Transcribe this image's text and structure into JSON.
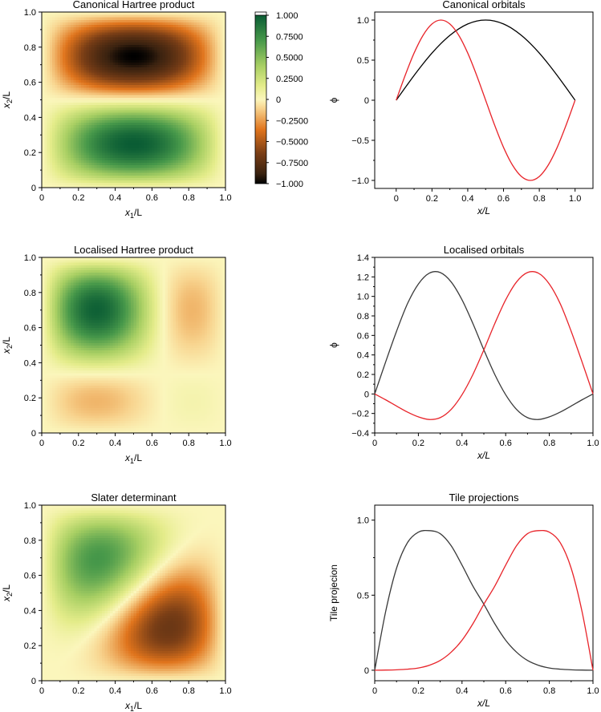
{
  "chart_data": [
    {
      "type": "heatmap",
      "panel": "canonical-hartree",
      "function": "sin(pi*x1)*sin(2*pi*x2)",
      "title": "Canonical Hartree product",
      "xlabel": {
        "base": "x",
        "sub": "1",
        "rest": "/L"
      },
      "ylabel": {
        "base": "x",
        "sub": "2",
        "rest": "/L"
      },
      "xlim": [
        0,
        1
      ],
      "ylim": [
        0,
        1
      ],
      "xticks": [
        "0",
        "0.2",
        "0.4",
        "0.6",
        "0.8",
        "1.0"
      ],
      "yticks": [
        "0",
        "0.2",
        "0.4",
        "0.6",
        "0.8",
        "1.0"
      ],
      "colorbar": {
        "range": [
          -1,
          1
        ],
        "ticks": [
          1,
          0.75,
          0.5,
          0.25,
          0,
          -0.25,
          -0.5,
          -0.75,
          -1
        ],
        "tick_labels": [
          "1.000",
          "0.7500",
          "0.5000",
          "0.2500",
          "0",
          "−0.2500",
          "−0.5000",
          "−0.7500",
          "−1.000"
        ]
      }
    },
    {
      "type": "line",
      "panel": "canonical-orbitals",
      "title": "Canonical orbitals",
      "xlabel": "x/L",
      "ylabel": "ϕ",
      "xlim": [
        -0.12,
        1.1
      ],
      "ylim": [
        -1.1,
        1.1
      ],
      "xticks": [
        0,
        0.2,
        0.4,
        0.6,
        0.8,
        1.0
      ],
      "xtick_labels": [
        "0",
        "0.2",
        "0.4",
        "0.6",
        "0.8",
        "1.0"
      ],
      "yticks": [
        -1.0,
        -0.5,
        0,
        0.5,
        1.0
      ],
      "ytick_labels": [
        "−1.0",
        "−0.5",
        "0",
        "0.5",
        "1.0"
      ],
      "x": [
        0,
        0.05,
        0.1,
        0.15,
        0.2,
        0.25,
        0.3,
        0.35,
        0.4,
        0.45,
        0.5,
        0.55,
        0.6,
        0.65,
        0.7,
        0.75,
        0.8,
        0.85,
        0.9,
        0.95,
        1.0
      ],
      "series": [
        {
          "color": "#000000",
          "values": [
            0,
            0.156,
            0.309,
            0.454,
            0.588,
            0.707,
            0.809,
            0.891,
            0.951,
            0.988,
            1.0,
            0.988,
            0.951,
            0.891,
            0.809,
            0.707,
            0.588,
            0.454,
            0.309,
            0.156,
            0
          ]
        },
        {
          "color": "#e8242a",
          "values": [
            0,
            0.309,
            0.588,
            0.809,
            0.951,
            1.0,
            0.951,
            0.809,
            0.588,
            0.309,
            0,
            -0.309,
            -0.588,
            -0.809,
            -0.951,
            -1.0,
            -0.951,
            -0.809,
            -0.588,
            -0.309,
            0
          ]
        }
      ]
    },
    {
      "type": "heatmap",
      "panel": "localised-hartree",
      "function": "phiL(x1)*phiR(x2)",
      "title": "Localised Hartree product",
      "xlabel": {
        "base": "x",
        "sub": "1",
        "rest": "/L"
      },
      "ylabel": {
        "base": "x",
        "sub": "2",
        "rest": "/L"
      },
      "xlim": [
        0,
        1
      ],
      "ylim": [
        0,
        1
      ],
      "xticks": [
        "0",
        "0.2",
        "0.4",
        "0.6",
        "0.8",
        "1.0"
      ],
      "yticks": [
        "0",
        "0.2",
        "0.4",
        "0.6",
        "0.8",
        "1.0"
      ]
    },
    {
      "type": "line",
      "panel": "localised-orbitals",
      "title": "Localised orbitals",
      "xlabel": "x/L",
      "ylabel": "ϕ",
      "xlim": [
        0,
        1
      ],
      "ylim": [
        -0.4,
        1.4
      ],
      "xticks": [
        0,
        0.2,
        0.4,
        0.6,
        0.8,
        1.0
      ],
      "xtick_labels": [
        "0",
        "0.2",
        "0.4",
        "0.6",
        "0.8",
        "1.0"
      ],
      "yticks": [
        -0.4,
        -0.2,
        0,
        0.2,
        0.4,
        0.6,
        0.8,
        1.0,
        1.2,
        1.4
      ],
      "ytick_labels": [
        "−0.4",
        "−0.2",
        "0",
        "0.2",
        "0.4",
        "0.6",
        "0.8",
        "1.0",
        "1.2",
        "1.4"
      ],
      "x": [
        0,
        0.05,
        0.1,
        0.15,
        0.2,
        0.25,
        0.3,
        0.35,
        0.4,
        0.45,
        0.5,
        0.55,
        0.6,
        0.65,
        0.7,
        0.75,
        0.8,
        0.85,
        0.9,
        0.95,
        1.0
      ],
      "series": [
        {
          "color": "#3a3a3a",
          "values": [
            0,
            0.328,
            0.643,
            0.925,
            1.127,
            1.238,
            1.245,
            1.149,
            0.965,
            0.721,
            0.452,
            0.2,
            -0.008,
            -0.159,
            -0.243,
            -0.262,
            -0.235,
            -0.186,
            -0.124,
            -0.06,
            0
          ]
        },
        {
          "color": "#e8242a",
          "values": [
            0,
            -0.06,
            -0.124,
            -0.186,
            -0.235,
            -0.262,
            -0.243,
            -0.159,
            -0.008,
            0.2,
            0.452,
            0.721,
            0.965,
            1.149,
            1.245,
            1.238,
            1.127,
            0.925,
            0.643,
            0.328,
            0
          ]
        }
      ]
    },
    {
      "type": "heatmap",
      "panel": "slater",
      "function": "slater",
      "title": "Slater determinant",
      "xlabel": {
        "base": "x",
        "sub": "1",
        "rest": "/L"
      },
      "ylabel": {
        "base": "x",
        "sub": "2",
        "rest": "/L"
      },
      "xlim": [
        0,
        1
      ],
      "ylim": [
        0,
        1
      ],
      "xticks": [
        "0",
        "0.2",
        "0.4",
        "0.6",
        "0.8",
        "1.0"
      ],
      "yticks": [
        "0",
        "0.2",
        "0.4",
        "0.6",
        "0.8",
        "1.0"
      ]
    },
    {
      "type": "line",
      "panel": "tile-projections",
      "title": "Tile projections",
      "xlabel": "x/L",
      "ylabel": "Tile projecion",
      "xlim": [
        0,
        1
      ],
      "ylim": [
        -0.07,
        1.1
      ],
      "xticks": [
        0,
        0.2,
        0.4,
        0.6,
        0.8,
        1.0
      ],
      "xtick_labels": [
        "0",
        "0.2",
        "0.4",
        "0.6",
        "0.8",
        "1.0"
      ],
      "yticks": [
        0,
        0.5,
        1.0
      ],
      "ytick_labels": [
        "0",
        "0.5",
        "1.0"
      ],
      "x": [
        0,
        0.05,
        0.1,
        0.15,
        0.2,
        0.25,
        0.3,
        0.35,
        0.4,
        0.45,
        0.5,
        0.55,
        0.6,
        0.65,
        0.7,
        0.75,
        0.8,
        0.85,
        0.9,
        0.95,
        1.0
      ],
      "series": [
        {
          "color": "#3a3a3a",
          "values": [
            0,
            0.39,
            0.68,
            0.85,
            0.92,
            0.93,
            0.91,
            0.83,
            0.7,
            0.56,
            0.44,
            0.31,
            0.2,
            0.12,
            0.065,
            0.033,
            0.015,
            0.007,
            0.003,
            0.001,
            0
          ]
        },
        {
          "color": "#e8242a",
          "values": [
            0,
            0.001,
            0.003,
            0.007,
            0.015,
            0.033,
            0.065,
            0.12,
            0.2,
            0.31,
            0.44,
            0.56,
            0.7,
            0.83,
            0.91,
            0.93,
            0.92,
            0.85,
            0.68,
            0.39,
            0
          ]
        }
      ]
    }
  ]
}
